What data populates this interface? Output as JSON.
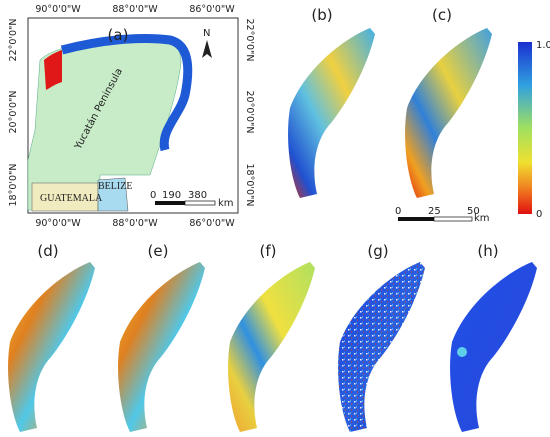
{
  "map": {
    "label": "(a)",
    "title": "Yucatán Peninsula",
    "countries": [
      "GUATEMALA",
      "BELIZE"
    ],
    "north": "N",
    "lon_labels": [
      "90°0'0\"W",
      "88°0'0\"W",
      "86°0'0\"W"
    ],
    "lat_labels": [
      "22°0'0\"N",
      "20°0'0\"N",
      "18°0'0\"N"
    ],
    "scale": [
      "0",
      "190",
      "380"
    ],
    "scale_unit": "km"
  },
  "panels": [
    "(b)",
    "(c)",
    "(d)",
    "(e)",
    "(f)",
    "(g)",
    "(h)"
  ],
  "colorbar": {
    "max": "1.0",
    "min": "0"
  },
  "scalebar": {
    "ticks": [
      "0",
      "25",
      "50"
    ],
    "unit": "km"
  }
}
